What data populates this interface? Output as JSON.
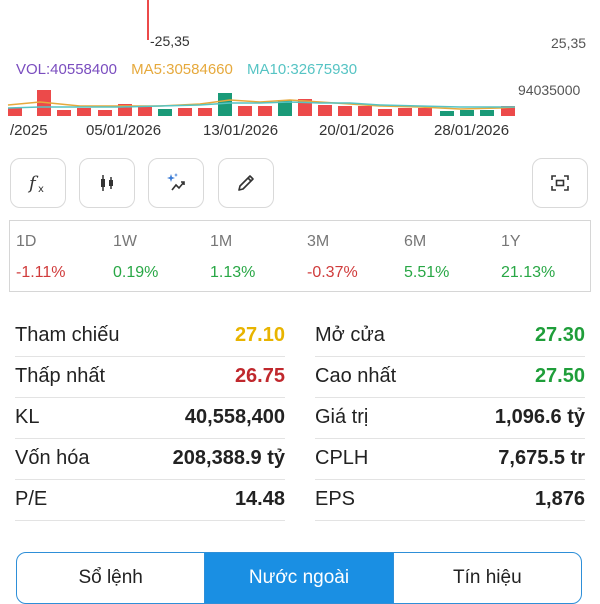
{
  "chart": {
    "low_marker": "-25,35",
    "right_price": "25,35",
    "right_volume_ref": "94035000",
    "legend": {
      "vol": "VOL:40558400",
      "ma5": "MA5:30584660",
      "ma10": "MA10:32675930"
    },
    "dates": [
      "/2025",
      "05/01/2026",
      "13/01/2026",
      "20/01/2026",
      "28/01/2026"
    ],
    "colors": {
      "up": "#1a9a78",
      "down": "#ec4a4a",
      "vol_label": "#7a4dbf",
      "ma5": "#e6a93c",
      "ma10": "#56c4c4"
    }
  },
  "toolbar": {
    "function_icon": "function-icon",
    "candles_icon": "candlestick-icon",
    "ai_icon": "sparkle-chart-icon",
    "draw_icon": "pencil-icon",
    "capture_icon": "screen-capture-icon"
  },
  "performance": [
    {
      "label": "1D",
      "value": "-1.11%",
      "color": "#d03b3b"
    },
    {
      "label": "1W",
      "value": "0.19%",
      "color": "#28a745"
    },
    {
      "label": "1M",
      "value": "1.13%",
      "color": "#28a745"
    },
    {
      "label": "3M",
      "value": "-0.37%",
      "color": "#d03b3b"
    },
    {
      "label": "6M",
      "value": "5.51%",
      "color": "#28a745"
    },
    {
      "label": "1Y",
      "value": "21.13%",
      "color": "#28a745"
    }
  ],
  "stats": {
    "left": [
      {
        "label": "Tham chiếu",
        "value": "27.10",
        "color": "#e8b400"
      },
      {
        "label": "Thấp nhất",
        "value": "26.75",
        "color": "#c0282d"
      },
      {
        "label": "KL",
        "value": "40,558,400",
        "color": "#222222"
      },
      {
        "label": "Vốn hóa",
        "value": "208,388.9 tỷ",
        "color": "#222222"
      },
      {
        "label": "P/E",
        "value": "14.48",
        "color": "#222222"
      }
    ],
    "right": [
      {
        "label": "Mở cửa",
        "value": "27.30",
        "color": "#1f9e3a"
      },
      {
        "label": "Cao nhất",
        "value": "27.50",
        "color": "#1f9e3a"
      },
      {
        "label": "Giá trị",
        "value": "1,096.6 tỷ",
        "color": "#222222"
      },
      {
        "label": "CPLH",
        "value": "7,675.5 tr",
        "color": "#222222"
      },
      {
        "label": "EPS",
        "value": "1,876",
        "color": "#222222"
      }
    ]
  },
  "tabs": [
    {
      "label": "Sổ lệnh",
      "active": false
    },
    {
      "label": "Nước ngoài",
      "active": true
    },
    {
      "label": "Tín hiệu",
      "active": false
    }
  ]
}
